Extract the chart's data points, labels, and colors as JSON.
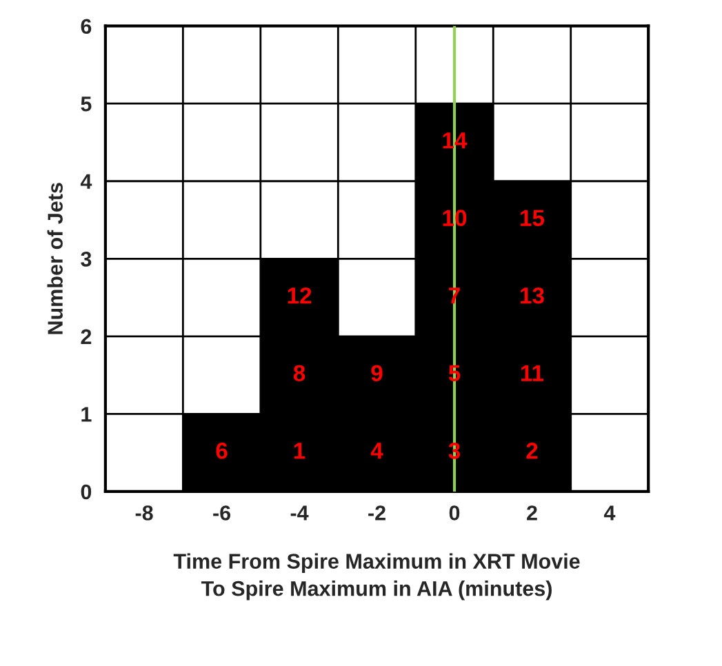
{
  "chart_data": {
    "type": "histogram",
    "xlabel": "Time From Spire Maximum in XRT Movie\nTo Spire Maximum in AIA (minutes)",
    "ylabel": "Number of Jets",
    "bins": [
      -9,
      -7,
      -5,
      -3,
      -1,
      1,
      3,
      5
    ],
    "values": [
      0,
      1,
      3,
      2,
      5,
      4,
      0
    ],
    "color": "#000000",
    "xlim": [
      -9,
      5
    ],
    "xticks": [
      -8,
      -6,
      -4,
      -2,
      0,
      2,
      4
    ],
    "ylim": [
      0,
      6
    ],
    "yticks": [
      0,
      1,
      2,
      3,
      4,
      5,
      6
    ],
    "grid": true,
    "ref_lines": [
      {
        "axis": "x",
        "value": 0,
        "color": "#92d050"
      }
    ],
    "annotations": [
      "6",
      "1",
      "8",
      "12",
      "4",
      "9",
      "3",
      "5",
      "7",
      "10",
      "14",
      "2",
      "11",
      "13",
      "15"
    ]
  }
}
